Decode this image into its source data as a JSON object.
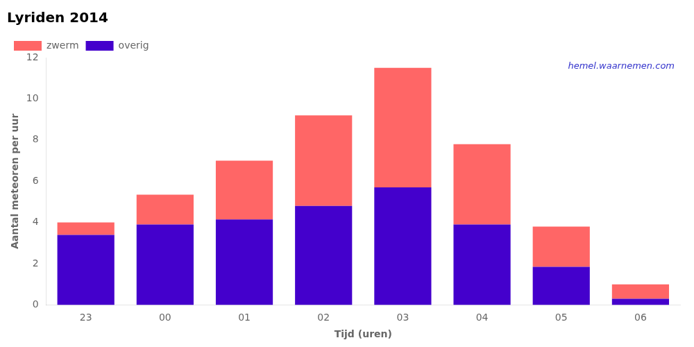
{
  "chart_data": {
    "type": "bar",
    "title": "Lyriden 2014",
    "xlabel": "Tijd (uren)",
    "ylabel": "Aantal meteoren per uur",
    "categories": [
      "23",
      "00",
      "01",
      "02",
      "03",
      "04",
      "05",
      "06"
    ],
    "series": [
      {
        "name": "overig",
        "color": "#4400cc",
        "values": [
          3.4,
          3.9,
          4.15,
          4.8,
          5.7,
          3.9,
          1.85,
          0.3
        ]
      },
      {
        "name": "zwerm",
        "color": "#ff6666",
        "values": [
          0.6,
          1.45,
          2.85,
          4.4,
          5.8,
          3.9,
          1.95,
          0.7
        ]
      }
    ],
    "stacked": true,
    "ylim": [
      0,
      12
    ],
    "yticks": [
      0,
      2,
      4,
      6,
      8,
      10,
      12
    ],
    "grid": false,
    "legend": "upper left",
    "annotations": [
      {
        "text": "hemel.waarnemen.com",
        "color": "#3333cc"
      }
    ]
  }
}
